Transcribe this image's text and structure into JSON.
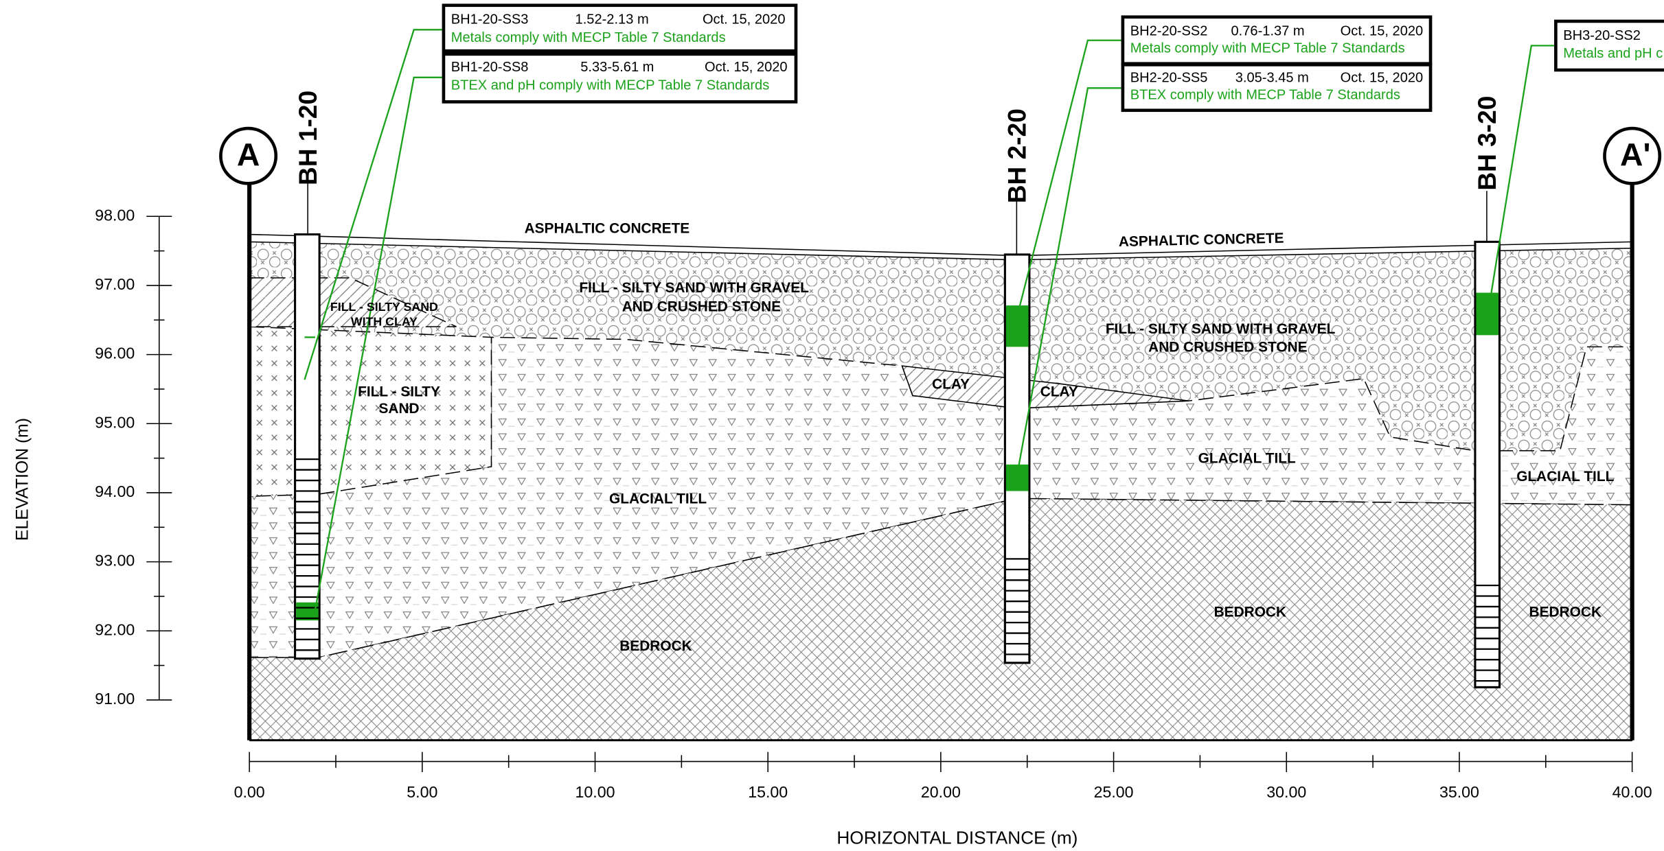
{
  "axes": {
    "y": {
      "label": "ELEVATION (m)",
      "ticks": [
        {
          "value": 91,
          "label": "91.00"
        },
        {
          "value": 92,
          "label": "92.00"
        },
        {
          "value": 93,
          "label": "93.00"
        },
        {
          "value": 94,
          "label": "94.00"
        },
        {
          "value": 95,
          "label": "95.00"
        },
        {
          "value": 96,
          "label": "96.00"
        },
        {
          "value": 97,
          "label": "97.00"
        },
        {
          "value": 98,
          "label": "98.00"
        }
      ]
    },
    "x": {
      "label": "HORIZONTAL DISTANCE (m)",
      "ticks": [
        {
          "value": 0,
          "label": "0.00"
        },
        {
          "value": 5,
          "label": "5.00"
        },
        {
          "value": 10,
          "label": "10.00"
        },
        {
          "value": 15,
          "label": "15.00"
        },
        {
          "value": 20,
          "label": "20.00"
        },
        {
          "value": 25,
          "label": "25.00"
        },
        {
          "value": 30,
          "label": "30.00"
        },
        {
          "value": 35,
          "label": "35.00"
        },
        {
          "value": 40,
          "label": "40.00"
        }
      ]
    }
  },
  "section": {
    "start": "A",
    "end": "A'"
  },
  "boreholes": [
    "BH 1-20",
    "BH 2-20",
    "BH 3-20"
  ],
  "samples": [
    {
      "id": "BH1-20-SS3",
      "depth": "1.52-2.13 m",
      "date": "Oct. 15, 2020",
      "note": "Metals comply with MECP Table 7 Standards"
    },
    {
      "id": "BH1-20-SS8",
      "depth": "5.33-5.61 m",
      "date": "Oct. 15, 2020",
      "note": "BTEX and pH comply with MECP Table 7 Standards"
    },
    {
      "id": "BH2-20-SS2",
      "depth": "0.76-1.37 m",
      "date": "Oct. 15, 2020",
      "note": "Metals comply with MECP Table 7 Standards"
    },
    {
      "id": "BH2-20-SS5",
      "depth": "3.05-3.45 m",
      "date": "Oct. 15, 2020",
      "note": "BTEX comply with MECP Table 7 Standards"
    },
    {
      "id": "BH3-20-SS2",
      "note": "Metals and pH c"
    }
  ],
  "layer_labels": [
    {
      "lines": [
        "ASPHALTIC CONCRETE"
      ]
    },
    {
      "lines": [
        "ASPHALTIC CONCRETE"
      ]
    },
    {
      "lines": [
        "FILL - SILTY SAND WITH GRAVEL",
        "AND CRUSHED STONE"
      ]
    },
    {
      "lines": [
        "FILL - SILTY SAND WITH GRAVEL",
        "AND CRUSHED STONE"
      ]
    },
    {
      "lines": [
        "FILL - SILTY SAND",
        "WITH CLAY"
      ]
    },
    {
      "lines": [
        "FILL - SILTY",
        "SAND"
      ]
    },
    {
      "lines": [
        "CLAY"
      ]
    },
    {
      "lines": [
        "CLAY"
      ]
    },
    {
      "lines": [
        "GLACIAL TILL"
      ]
    },
    {
      "lines": [
        "GLACIAL TILL"
      ]
    },
    {
      "lines": [
        "GLACIAL TILL"
      ]
    },
    {
      "lines": [
        "BEDROCK"
      ]
    },
    {
      "lines": [
        "BEDROCK"
      ]
    },
    {
      "lines": [
        "BEDROCK"
      ]
    }
  ]
}
